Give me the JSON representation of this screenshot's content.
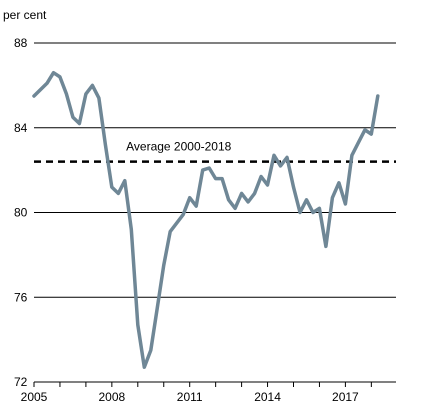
{
  "chart_data": {
    "type": "line",
    "ylabel": "per cent",
    "ylim": [
      72,
      88
    ],
    "yticks": [
      72,
      76,
      80,
      84,
      88
    ],
    "xlim": [
      2005,
      2018.95
    ],
    "xticks": [
      2005,
      2008,
      2011,
      2014,
      2017
    ],
    "grid": "horizontal",
    "series": [
      {
        "x": [
          2005.0,
          2005.25,
          2005.5,
          2005.75,
          2006.0,
          2006.25,
          2006.5,
          2006.75,
          2007.0,
          2007.25,
          2007.5,
          2007.75,
          2008.0,
          2008.25,
          2008.5,
          2008.75,
          2009.0,
          2009.25,
          2009.5,
          2009.75,
          2010.0,
          2010.25,
          2010.5,
          2010.75,
          2011.0,
          2011.25,
          2011.5,
          2011.75,
          2012.0,
          2012.25,
          2012.5,
          2012.75,
          2013.0,
          2013.25,
          2013.5,
          2013.75,
          2014.0,
          2014.25,
          2014.5,
          2014.75,
          2015.0,
          2015.25,
          2015.5,
          2015.75,
          2016.0,
          2016.25,
          2016.5,
          2016.75,
          2017.0,
          2017.25,
          2017.5,
          2017.75,
          2018.0,
          2018.25
        ],
        "values": [
          85.5,
          85.8,
          86.1,
          86.6,
          86.4,
          85.6,
          84.5,
          84.2,
          85.6,
          86.0,
          85.4,
          83.2,
          81.2,
          80.9,
          81.5,
          79.2,
          74.7,
          72.7,
          73.5,
          75.5,
          77.5,
          79.1,
          79.5,
          79.9,
          80.7,
          80.3,
          82.0,
          82.1,
          81.6,
          81.6,
          80.6,
          80.2,
          80.9,
          80.5,
          80.9,
          81.7,
          81.3,
          82.7,
          82.2,
          82.6,
          81.2,
          80.0,
          80.6,
          80.0,
          80.2,
          78.4,
          80.7,
          81.4,
          80.4,
          82.7,
          83.3,
          83.9,
          83.7,
          85.5
        ],
        "color": "#6f8796"
      }
    ],
    "average": {
      "label": "Average 2000-2018",
      "value": 82.4
    },
    "axis_color": "#000000"
  }
}
